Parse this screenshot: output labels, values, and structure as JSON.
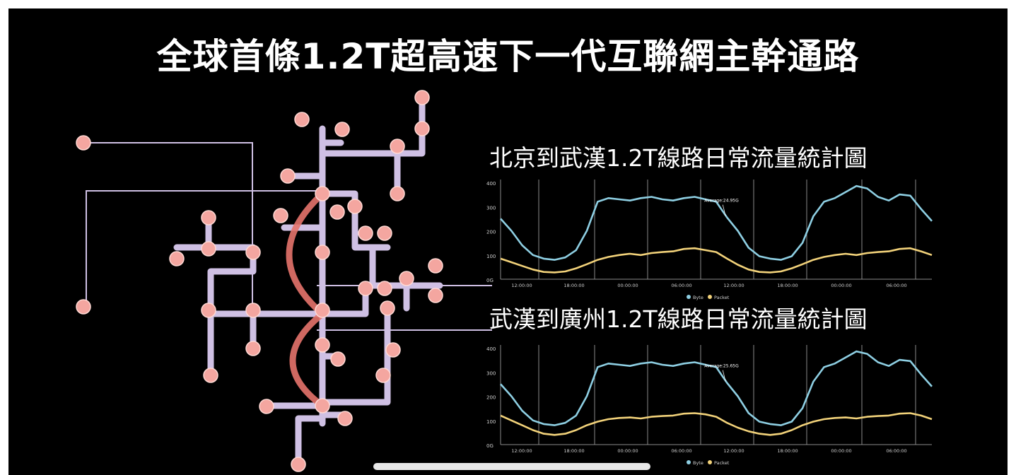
{
  "title": "全球首條1.2T超高速下一代互聯網主幹通路",
  "network": {
    "pipe_color": "#cfc0e4",
    "node_color": "#f4a6a0",
    "link_color": "#e5736b"
  },
  "chart_data": [
    {
      "type": "line",
      "title": "北京到武漢1.2T線路日常流量統計圖",
      "yticks": [
        "400",
        "300",
        "200",
        "100",
        "0G"
      ],
      "xticks": [
        "12:00:00",
        "18:00:00",
        "00:00:00",
        "06:00:00",
        "12:00:00",
        "18:00:00",
        "00:00:00",
        "06:00:00"
      ],
      "ylim": [
        0,
        400
      ],
      "annotation": "Average:24.95G",
      "series": [
        {
          "name": "Byte",
          "color": "#8ecfe3",
          "values": [
            250,
            200,
            140,
            100,
            85,
            80,
            90,
            120,
            200,
            320,
            335,
            330,
            325,
            335,
            340,
            330,
            325,
            335,
            340,
            330,
            320,
            255,
            200,
            130,
            95,
            85,
            80,
            95,
            150,
            260,
            320,
            335,
            360,
            385,
            375,
            340,
            325,
            350,
            345,
            290,
            240
          ]
        },
        {
          "name": "Packet",
          "color": "#f2d27a",
          "values": [
            85,
            70,
            55,
            40,
            30,
            28,
            32,
            45,
            62,
            80,
            92,
            100,
            105,
            100,
            108,
            112,
            115,
            125,
            128,
            120,
            112,
            85,
            60,
            40,
            30,
            28,
            32,
            45,
            62,
            80,
            92,
            100,
            105,
            100,
            108,
            112,
            115,
            125,
            128,
            115,
            100
          ]
        }
      ]
    },
    {
      "type": "line",
      "title": "武漢到廣州1.2T線路日常流量統計圖",
      "yticks": [
        "400",
        "300",
        "200",
        "100",
        "0G"
      ],
      "xticks": [
        "12:00:00",
        "18:00:00",
        "00:00:00",
        "06:00:00",
        "12:00:00",
        "18:00:00",
        "00:00:00",
        "06:00:00"
      ],
      "ylim": [
        0,
        400
      ],
      "annotation": "Average:25.65G",
      "series": [
        {
          "name": "Byte",
          "color": "#8ecfe3",
          "values": [
            250,
            200,
            140,
            100,
            85,
            80,
            90,
            120,
            200,
            320,
            335,
            330,
            325,
            335,
            340,
            330,
            325,
            335,
            340,
            330,
            320,
            255,
            200,
            130,
            95,
            85,
            80,
            95,
            150,
            260,
            320,
            335,
            360,
            385,
            375,
            340,
            325,
            350,
            345,
            290,
            240
          ]
        },
        {
          "name": "Packet",
          "color": "#f2d27a",
          "values": [
            120,
            100,
            80,
            60,
            45,
            40,
            45,
            60,
            80,
            95,
            105,
            110,
            112,
            108,
            115,
            118,
            120,
            128,
            130,
            125,
            115,
            90,
            70,
            55,
            45,
            40,
            45,
            60,
            80,
            95,
            105,
            110,
            112,
            108,
            115,
            118,
            120,
            128,
            130,
            120,
            105
          ]
        }
      ]
    }
  ]
}
